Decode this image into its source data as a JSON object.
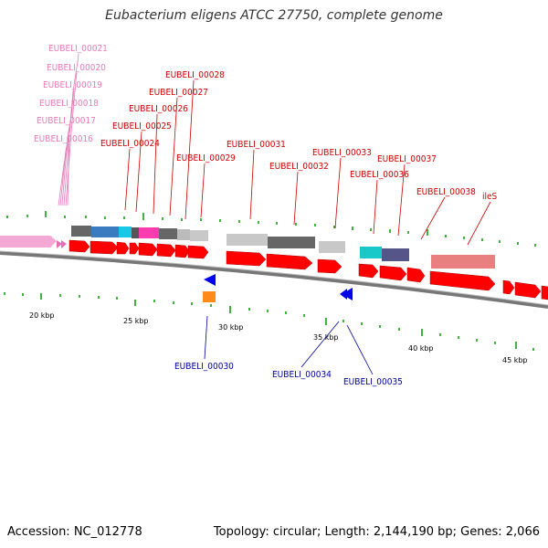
{
  "title": "Eubacterium eligens ATCC 27750, complete genome",
  "footer": {
    "accession": "Accession: NC_012778",
    "topology": "Topology: circular; Length: 2,144,190 bp; Genes: 2,066"
  },
  "colors": {
    "gene_forward": "#ff0000",
    "gene_reverse": "#0000ff",
    "label_red": "#cc0000",
    "label_pink": "#e57ab8",
    "label_blue": "#000099",
    "tick": "#009900"
  },
  "scale_labels": [
    "20 kbp",
    "25 kbp",
    "30 kbp",
    "35 kbp",
    "40 kbp",
    "45 kbp"
  ],
  "gene_labels": {
    "pink": [
      "EUBELI_00021",
      "EUBELI_00020",
      "EUBELI_00019",
      "EUBELI_00018",
      "EUBELI_00017",
      "EUBELI_00016"
    ],
    "red": [
      "EUBELI_00028",
      "EUBELI_00027",
      "EUBELI_00026",
      "EUBELI_00025",
      "EUBELI_00024",
      "EUBELI_00029",
      "EUBELI_00031",
      "EUBELI_00032",
      "EUBELI_00033",
      "EUBELI_00036",
      "EUBELI_00037",
      "EUBELI_00038",
      "ileS"
    ],
    "blue": [
      "EUBELI_00030",
      "EUBELI_00034",
      "EUBELI_00035"
    ]
  }
}
